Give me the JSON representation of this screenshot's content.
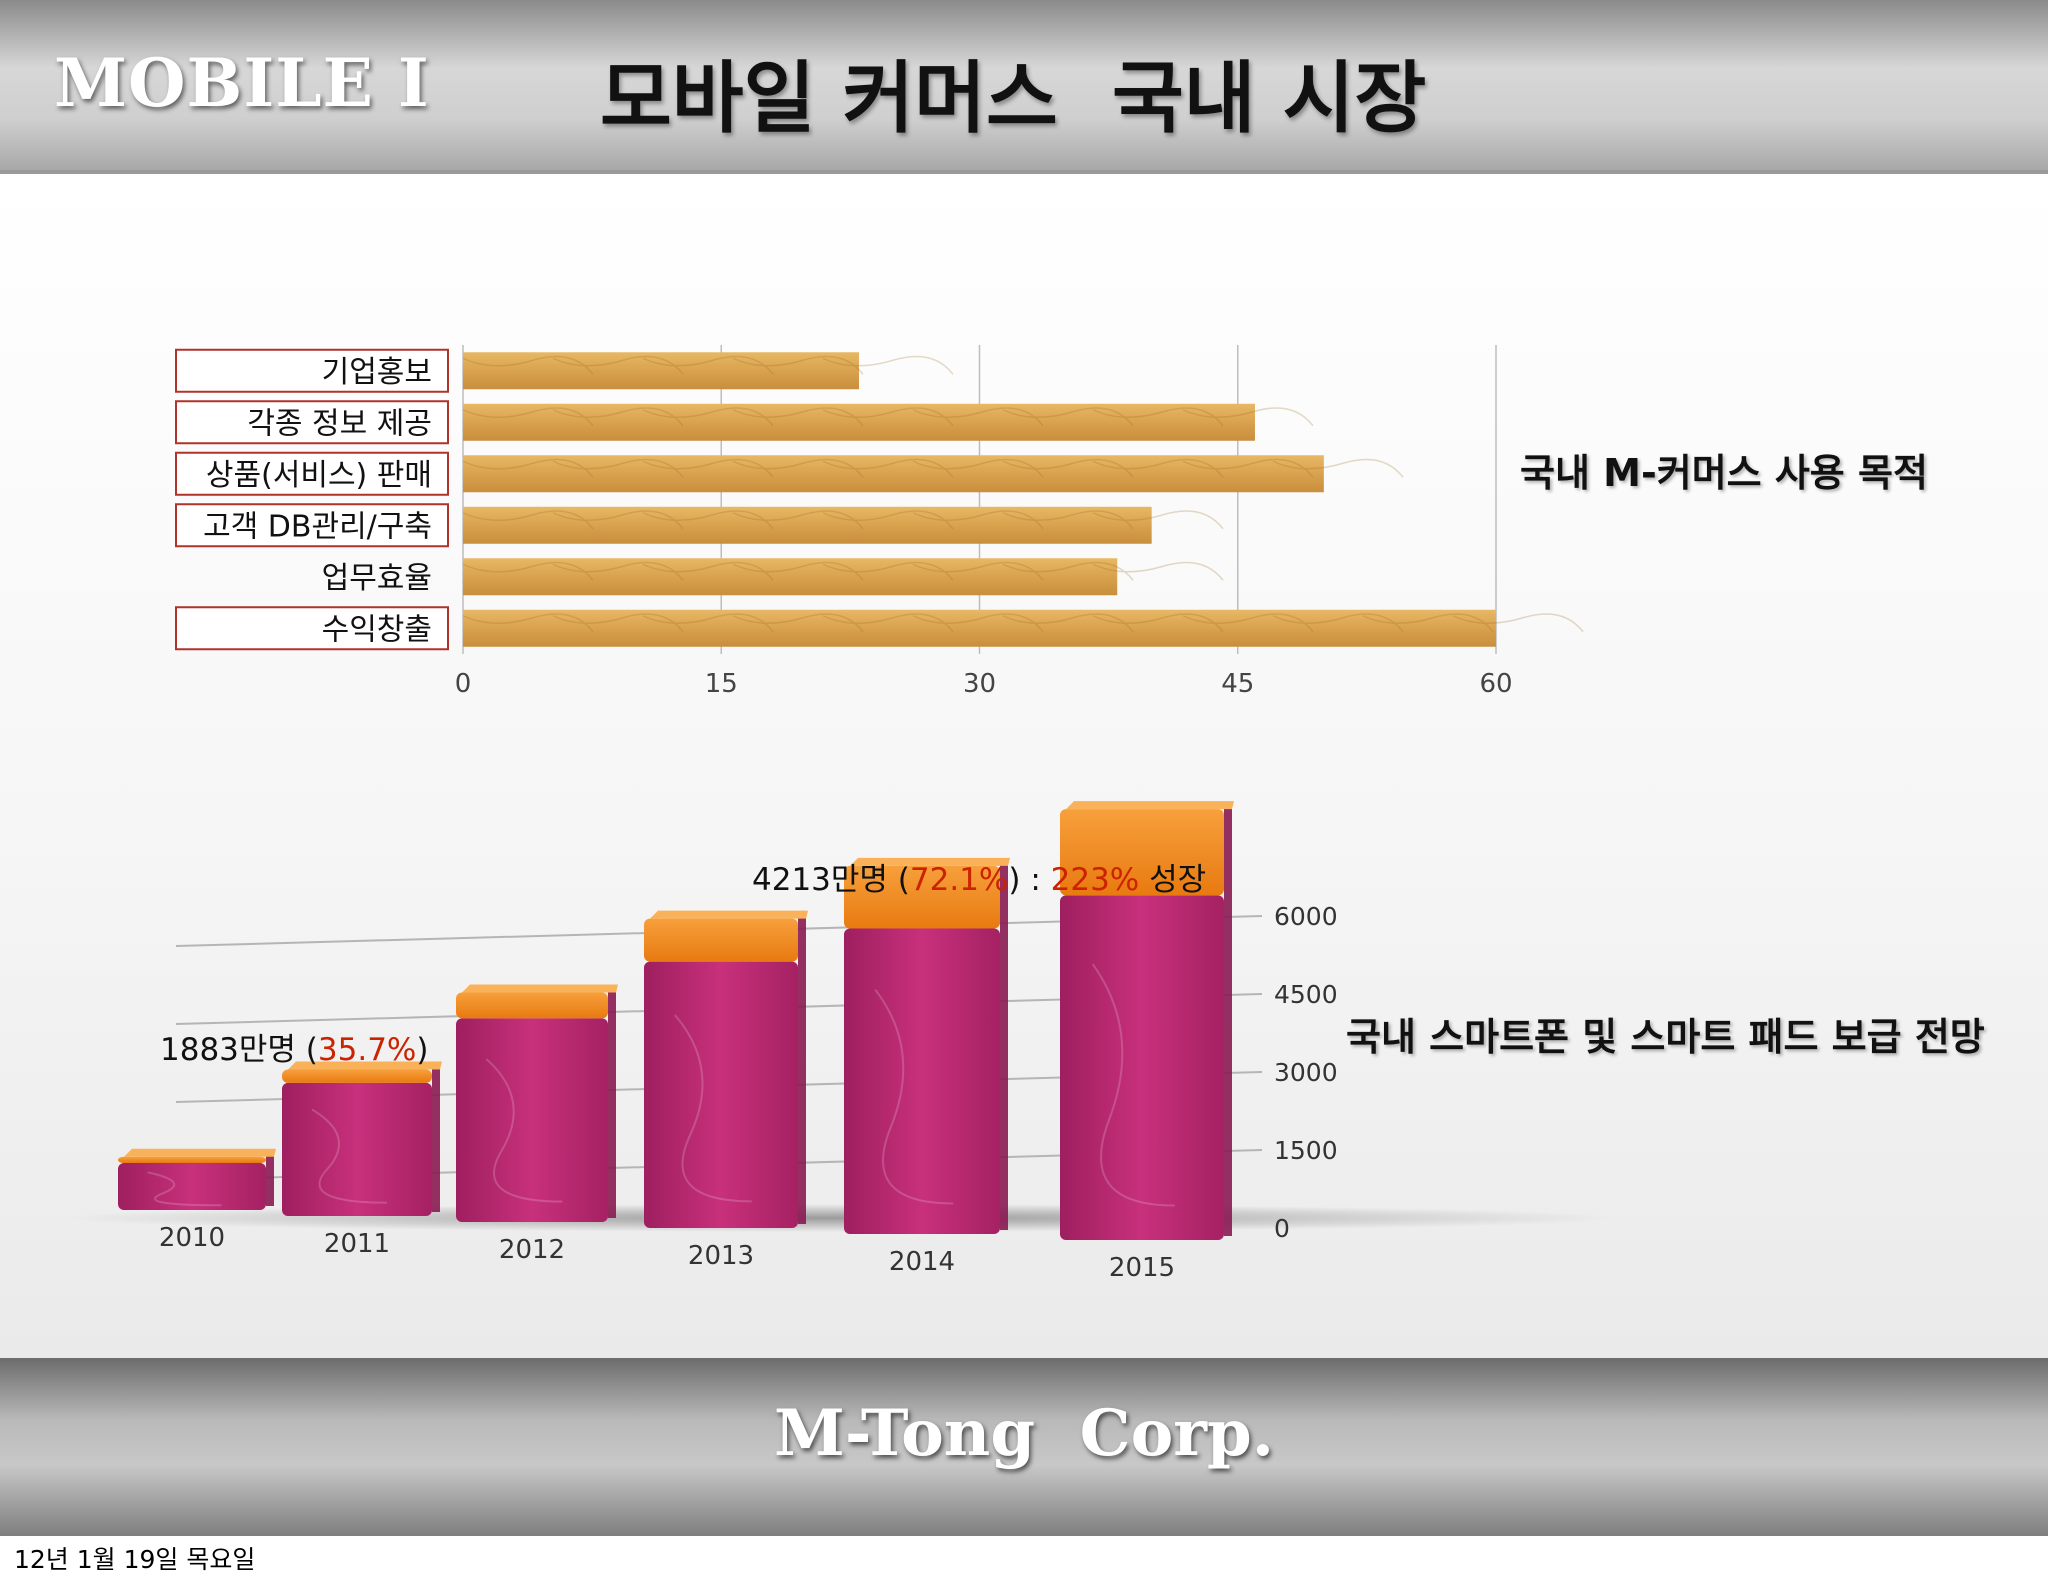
{
  "header": {
    "left_label": "MOBILE I",
    "title": "모바일 커머스  국내 시장"
  },
  "footer": {
    "company": "M-Tong  Corp."
  },
  "date_text": "12년 1월 19일 목요일",
  "colors": {
    "wood_bar": "#d9a24e",
    "bar_body": "#b8276f",
    "bar_top": "#f28a1c",
    "highlight_red": "#cc2200",
    "label_border": "#b0332a"
  },
  "chart_data": [
    {
      "type": "bar",
      "orientation": "horizontal",
      "title": "국내 M-커머스 사용 목적",
      "categories": [
        "기업홍보",
        "각종 정보 제공",
        "상품(서비스) 판매",
        "고객 DB관리/구축",
        "업무효율",
        "수익창출"
      ],
      "boxed": [
        true,
        true,
        true,
        true,
        false,
        true
      ],
      "values": [
        23,
        46,
        50,
        40,
        38,
        60
      ],
      "xlim": [
        0,
        60
      ],
      "xticks": [
        "0",
        "15",
        "30",
        "45",
        "60"
      ],
      "grid": true
    },
    {
      "type": "bar",
      "stacked": true,
      "title": "국내 스마트폰 및 스마트 패드 보급 전망",
      "categories": [
        "2010",
        "2011",
        "2012",
        "2013",
        "2014",
        "2015"
      ],
      "series": [
        {
          "values": [
            600,
            1700,
            2600,
            3400,
            3900,
            4400
          ]
        },
        {
          "values": [
            80,
            170,
            330,
            550,
            800,
            1100
          ]
        }
      ],
      "ylim": [
        0,
        6000
      ],
      "yticks": [
        "6000",
        "4500",
        "3000",
        "1500",
        "0"
      ],
      "annotations": {
        "early": {
          "prefix": "1883만명 (",
          "pct": "35.7%",
          "suffix": ")"
        },
        "late": {
          "prefix": "4213만명 (",
          "pct": "72.1%",
          "mid": ") : ",
          "growth": "223%",
          "suffix": " 성장"
        }
      }
    }
  ]
}
